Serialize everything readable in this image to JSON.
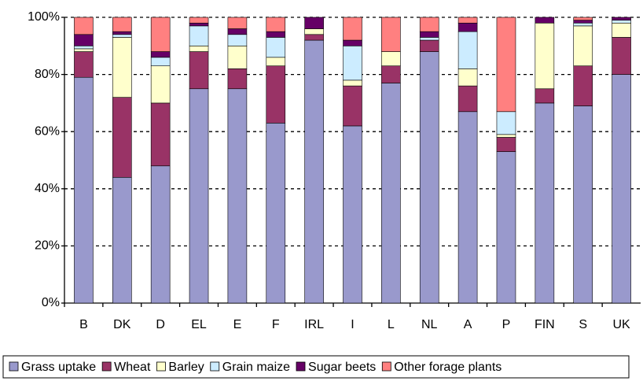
{
  "chart_data": {
    "type": "stacked_bar",
    "categories": [
      "B",
      "DK",
      "D",
      "EL",
      "E",
      "F",
      "IRL",
      "I",
      "L",
      "NL",
      "A",
      "P",
      "FIN",
      "S",
      "UK"
    ],
    "series": [
      {
        "name": "Grass uptake",
        "color": "#9999cc",
        "values": [
          79,
          44,
          48,
          75,
          75,
          63,
          92,
          62,
          77,
          88,
          67,
          53,
          70,
          69,
          80
        ]
      },
      {
        "name": "Wheat",
        "color": "#993366",
        "values": [
          9,
          28,
          22,
          13,
          7,
          20,
          2,
          14,
          6,
          4,
          9,
          5,
          5,
          14,
          13
        ]
      },
      {
        "name": "Barley",
        "color": "#ffffcc",
        "values": [
          1,
          21,
          13,
          2,
          8,
          3,
          2,
          2,
          5,
          0,
          6,
          1,
          23,
          14,
          5
        ]
      },
      {
        "name": "Grain maize",
        "color": "#ccecff",
        "values": [
          1,
          1,
          3,
          7,
          4,
          7,
          0,
          12,
          0,
          1,
          13,
          8,
          0,
          1,
          1
        ]
      },
      {
        "name": "Sugar beets",
        "color": "#660066",
        "values": [
          4,
          1,
          2,
          1,
          2,
          2,
          4,
          2,
          0,
          2,
          3,
          0,
          2,
          1,
          1
        ]
      },
      {
        "name": "Other forage plants",
        "color": "#ff8080",
        "values": [
          6,
          5,
          12,
          2,
          4,
          5,
          0,
          8,
          12,
          5,
          2,
          33,
          0,
          1,
          0
        ]
      }
    ],
    "ylim": [
      0,
      100
    ],
    "yticks": [
      {
        "value": 0,
        "label": "0%"
      },
      {
        "value": 20,
        "label": "20%"
      },
      {
        "value": 40,
        "label": "40%"
      },
      {
        "value": 60,
        "label": "60%"
      },
      {
        "value": 80,
        "label": "80%"
      },
      {
        "value": 100,
        "label": "100%"
      }
    ],
    "grid": true,
    "legend": "bottom"
  }
}
